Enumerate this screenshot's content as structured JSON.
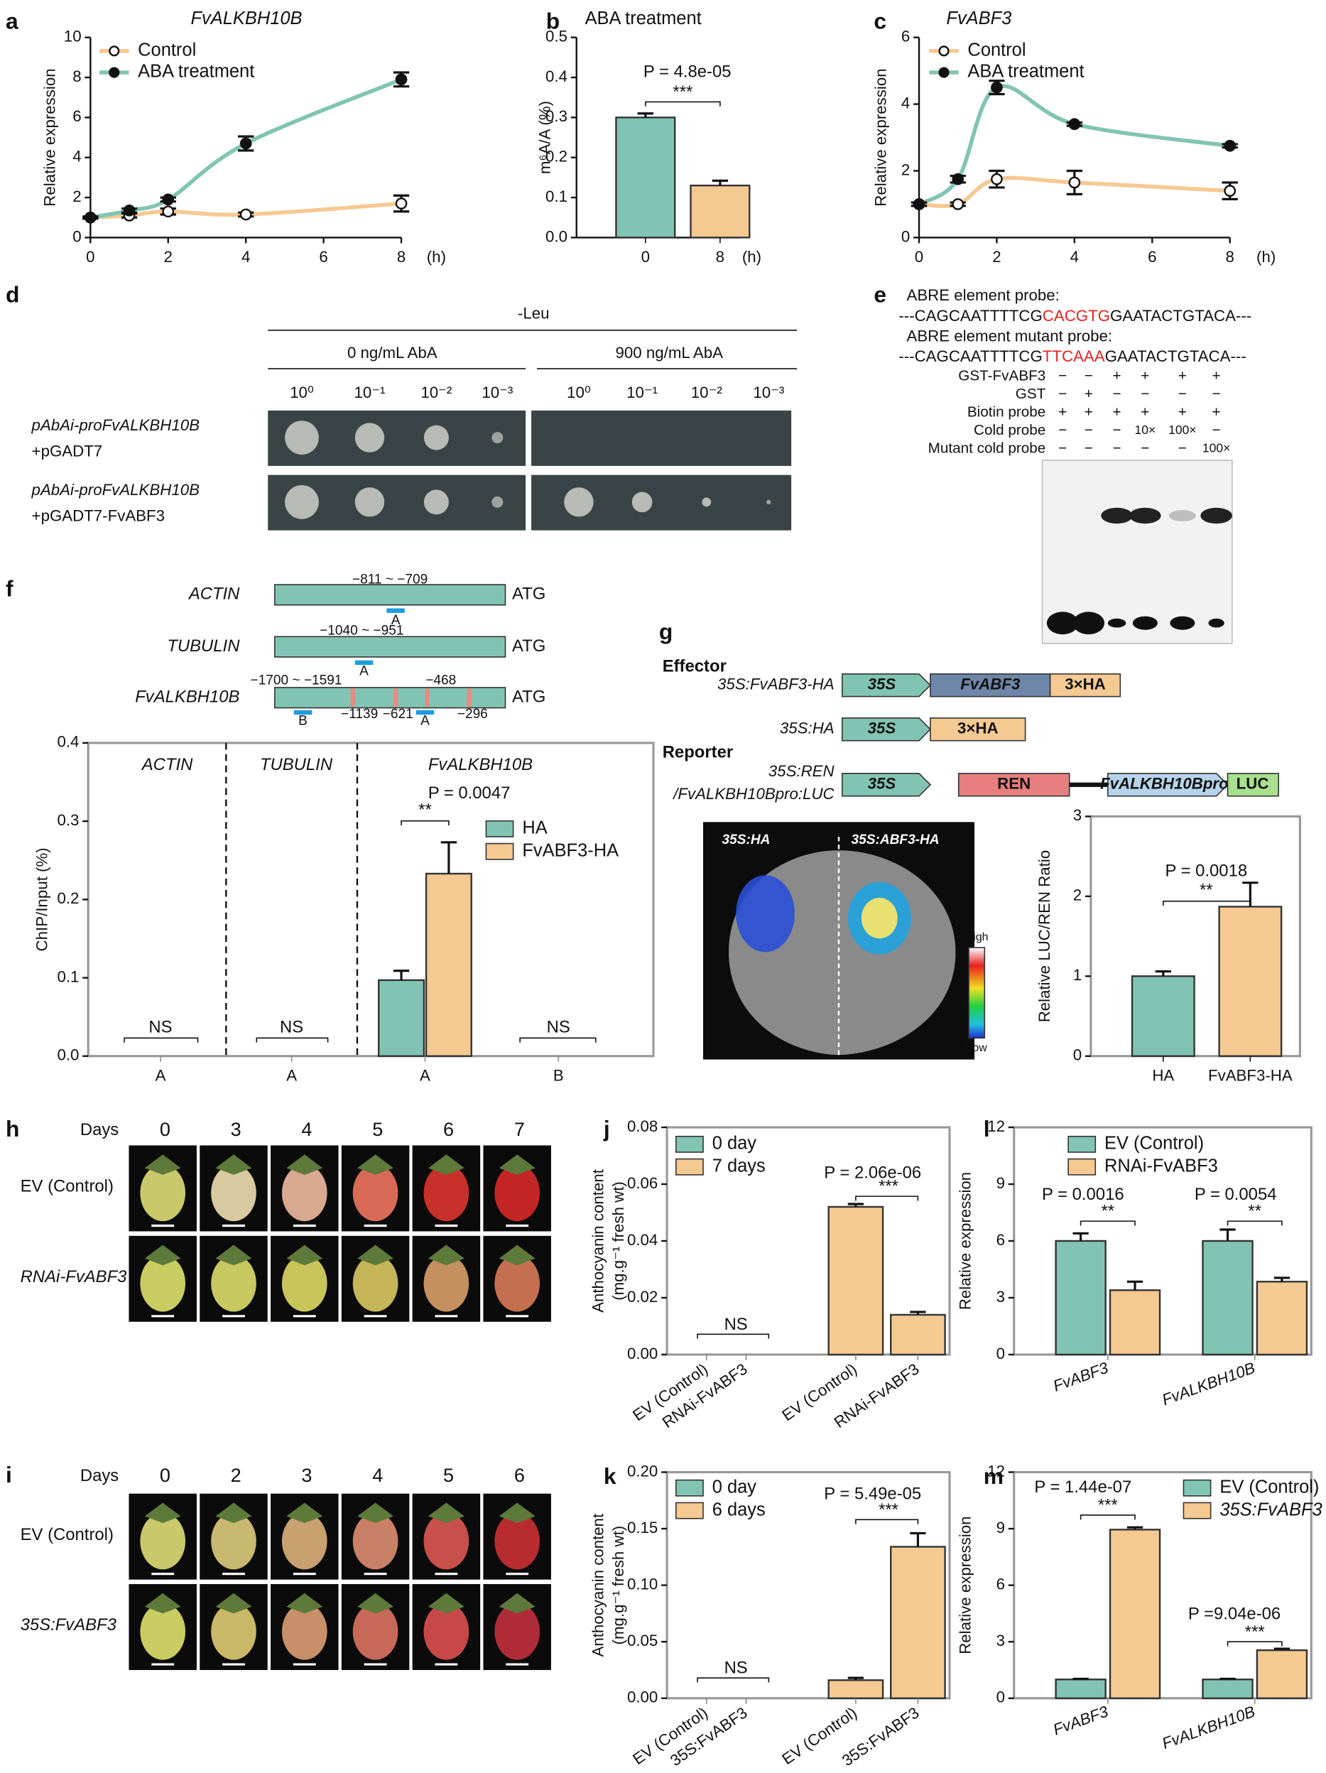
{
  "chart_data": [
    {
      "type": "line",
      "panel": "a",
      "title": "FvALKBH10B",
      "ylabel": "Relative expression",
      "xunit": "(h)",
      "x": [
        0,
        1,
        2,
        4,
        8
      ],
      "xlim": [
        0,
        8
      ],
      "xticks": [
        0,
        2,
        4,
        6,
        8
      ],
      "ylim": [
        0,
        10
      ],
      "yticks": [
        0,
        2,
        4,
        6,
        8,
        10
      ],
      "series": [
        {
          "name": "Control",
          "color": "#f5c992",
          "marker": "open",
          "values": [
            1,
            1.1,
            1.3,
            1.15,
            1.7
          ],
          "errors": [
            0.05,
            0.1,
            0.15,
            0.1,
            0.4
          ]
        },
        {
          "name": "ABA treatment",
          "color": "#82c4b4",
          "marker": "filled",
          "values": [
            1,
            1.35,
            1.9,
            4.7,
            7.9
          ],
          "errors": [
            0.05,
            0.1,
            0.1,
            0.35,
            0.35
          ]
        }
      ]
    },
    {
      "type": "bar",
      "panel": "b",
      "title": "ABA treatment",
      "ylabel": "m⁶A/A (%)",
      "xunit": "(h)",
      "categories": [
        "0",
        "8"
      ],
      "values": [
        0.3,
        0.13
      ],
      "errors": [
        0.01,
        0.012
      ],
      "colors": [
        "#82c4b4",
        "#f5c992"
      ],
      "ylim": [
        0,
        0.5
      ],
      "yticks": [
        {
          "value": 0,
          "label": "0.0"
        },
        0.1,
        0.2,
        0.3,
        0.4,
        0.5
      ],
      "annotations": [
        "P = 4.8e-05",
        "***"
      ]
    },
    {
      "type": "line",
      "panel": "c",
      "title": "FvABF3",
      "ylabel": "Relative expression",
      "xunit": "(h)",
      "x": [
        0,
        1,
        2,
        4,
        8
      ],
      "xlim": [
        0,
        8
      ],
      "xticks": [
        0,
        2,
        4,
        6,
        8
      ],
      "ylim": [
        0,
        6
      ],
      "yticks": [
        0,
        2,
        4,
        6
      ],
      "series": [
        {
          "name": "Control",
          "color": "#f5c992",
          "marker": "open",
          "values": [
            1,
            1,
            1.75,
            1.65,
            1.4
          ],
          "errors": [
            0.05,
            0.05,
            0.25,
            0.35,
            0.25
          ]
        },
        {
          "name": "ABA treatment",
          "color": "#82c4b4",
          "marker": "filled",
          "values": [
            1,
            1.75,
            4.5,
            3.4,
            2.75
          ],
          "errors": [
            0.05,
            0.1,
            0.2,
            0.05,
            0.05
          ]
        }
      ]
    },
    {
      "type": "grouped_bar",
      "panel": "f",
      "ylabel": "ChIP/Input (%)",
      "categories": [
        "A",
        "A",
        "A",
        "B"
      ],
      "group_labels": [
        "ACTIN",
        "TUBULIN",
        "FvALKBH10B"
      ],
      "ylim": [
        0,
        0.4
      ],
      "yticks": [
        {
          "value": 0,
          "label": "0.0"
        },
        0.1,
        0.2,
        0.3,
        0.4
      ],
      "series": [
        {
          "name": "HA",
          "color": "#82c4b4",
          "values": [
            0,
            0,
            0.097,
            0
          ],
          "errors": [
            0,
            0,
            0.012,
            0
          ]
        },
        {
          "name": "FvABF3-HA",
          "color": "#f5c992",
          "values": [
            0,
            0,
            0.233,
            0
          ],
          "errors": [
            0,
            0,
            0.04,
            0
          ]
        }
      ],
      "annotations": [
        "NS",
        "NS",
        "P = 0.0047",
        "**",
        "NS"
      ]
    },
    {
      "type": "bar",
      "panel": "g",
      "ylabel": "Relative LUC/REN Ratio",
      "categories": [
        "HA",
        "FvABF3-HA"
      ],
      "values": [
        1.0,
        1.87
      ],
      "errors": [
        0.06,
        0.3
      ],
      "colors": [
        "#82c4b4",
        "#f5c992"
      ],
      "ylim": [
        0,
        3
      ],
      "yticks": [
        0,
        1,
        2,
        3
      ],
      "annotations": [
        "P = 0.0018",
        "**"
      ]
    },
    {
      "type": "grouped_bar",
      "panel": "j",
      "ylabel": "Anthocyanin content",
      "ylabel2": "(mg.g⁻¹ fresh wt)",
      "categories": [
        "EV (Control)",
        "RNAi-FvABF3",
        "EV (Control)",
        "RNAi-FvABF3"
      ],
      "ylim": [
        0,
        0.08
      ],
      "yticks": [
        {
          "value": 0,
          "label": "0.00"
        },
        {
          "value": 0.02,
          "label": "0.02"
        },
        {
          "value": 0.04,
          "label": "0.04"
        },
        {
          "value": 0.06,
          "label": "0.06"
        },
        {
          "value": 0.08,
          "label": "0.08"
        }
      ],
      "series": [
        {
          "name": "0 day",
          "color": "#82c4b4",
          "values": [
            0,
            0,
            null,
            null
          ],
          "errors": [
            0,
            0,
            null,
            null
          ]
        },
        {
          "name": "7 days",
          "color": "#f5c992",
          "values": [
            null,
            null,
            0.052,
            0.014
          ],
          "errors": [
            null,
            null,
            0.001,
            0.001
          ]
        }
      ],
      "annotations": [
        "NS",
        "P = 2.06e-06",
        "***"
      ]
    },
    {
      "type": "grouped_bar",
      "panel": "l",
      "ylabel": "Relative expression",
      "categories": [
        "FvABF3",
        "FvALKBH10B"
      ],
      "ylim": [
        0,
        12
      ],
      "yticks": [
        0,
        3,
        6,
        9,
        12
      ],
      "series": [
        {
          "name": "EV (Control)",
          "color": "#82c4b4",
          "values": [
            6,
            6
          ],
          "errors": [
            0.4,
            0.6
          ]
        },
        {
          "name": "RNAi-FvABF3",
          "color": "#f5c992",
          "values": [
            3.4,
            3.85
          ],
          "errors": [
            0.45,
            0.2
          ]
        }
      ],
      "annotations": [
        "P = 0.0016",
        "**",
        "P = 0.0054",
        "**"
      ]
    },
    {
      "type": "grouped_bar",
      "panel": "k",
      "ylabel": "Anthocyanin content",
      "ylabel2": "(mg.g⁻¹ fresh wt)",
      "categories": [
        "EV (Control)",
        "35S:FvABF3",
        "EV (Control)",
        "35S:FvABF3"
      ],
      "ylim": [
        0,
        0.2
      ],
      "yticks": [
        {
          "value": 0,
          "label": "0.00"
        },
        {
          "value": 0.05,
          "label": "0.05"
        },
        {
          "value": 0.1,
          "label": "0.10"
        },
        {
          "value": 0.15,
          "label": "0.15"
        },
        {
          "value": 0.2,
          "label": "0.20"
        }
      ],
      "series": [
        {
          "name": "0 day",
          "color": "#82c4b4",
          "values": [
            0,
            0,
            null,
            null
          ],
          "errors": [
            0,
            0,
            null,
            null
          ]
        },
        {
          "name": "6 days",
          "color": "#f5c992",
          "values": [
            null,
            null,
            0.016,
            0.134
          ],
          "errors": [
            null,
            null,
            0.002,
            0.012
          ]
        }
      ],
      "annotations": [
        "NS",
        "P = 5.49e-05",
        "***"
      ]
    },
    {
      "type": "grouped_bar",
      "panel": "m",
      "ylabel": "Relative expression",
      "categories": [
        "FvABF3",
        "FvALKBH10B"
      ],
      "ylim": [
        0,
        12
      ],
      "yticks": [
        0,
        3,
        6,
        9,
        12
      ],
      "series": [
        {
          "name": "EV (Control)",
          "color": "#82c4b4",
          "values": [
            1,
            1
          ],
          "errors": [
            0.03,
            0.03
          ]
        },
        {
          "name": "35S:FvABF3",
          "color": "#f5c992",
          "values": [
            8.95,
            2.55
          ],
          "errors": [
            0.12,
            0.08
          ]
        }
      ],
      "annotations": [
        "P = 1.44e-07",
        "***",
        "P =9.04e-06",
        "***"
      ]
    }
  ],
  "panels": {
    "d": {
      "letter": "d",
      "medium": "-Leu",
      "conditions": [
        "0 ng/mL AbA",
        "900 ng/mL AbA"
      ],
      "dilutions": [
        "10⁰",
        "10⁻¹",
        "10⁻²",
        "10⁻³"
      ],
      "rows": [
        [
          "pAbAi-proFvALKBH10B",
          "+pGADT7"
        ],
        [
          "pAbAi-proFvALKBH10B",
          "+pGADT7-FvABF3"
        ]
      ]
    },
    "e": {
      "letter": "e",
      "probe_title": "ABRE element probe:",
      "probe": [
        "---CAGCAATTTTCG",
        "CACGTG",
        "GAATACTGTACA---"
      ],
      "mutant_title": "ABRE element mutant probe:",
      "mutant": [
        "---CAGCAATTTTCG",
        "TTCAAA",
        "GAATACTGTACA---"
      ],
      "rows": [
        {
          "label": "GST-FvABF3",
          "cells": [
            "−",
            "−",
            "+",
            "+",
            "+",
            "+"
          ]
        },
        {
          "label": "GST",
          "cells": [
            "−",
            "+",
            "−",
            "−",
            "−",
            "−"
          ]
        },
        {
          "label": "Biotin probe",
          "cells": [
            "+",
            "+",
            "+",
            "+",
            "+",
            "+"
          ]
        },
        {
          "label": "Cold probe",
          "cells": [
            "−",
            "−",
            "−",
            "10×",
            "100×",
            "−"
          ]
        },
        {
          "label": "Mutant cold probe",
          "cells": [
            "−",
            "−",
            "−",
            "−",
            "−",
            "100×"
          ]
        }
      ]
    },
    "f": {
      "genes": [
        {
          "name": "ACTIN",
          "range": "−811 ~ −709",
          "site": "A"
        },
        {
          "name": "TUBULIN",
          "range": "−1040 ~ −951",
          "site": "A"
        },
        {
          "name": "FvALKBH10B",
          "range": "−1700 ~ −1591",
          "site": "B",
          "site2": "A",
          "marks": [
            "−468",
            "−1139",
            "−621",
            "−296"
          ]
        }
      ],
      "atg": "ATG"
    },
    "g": {
      "effector": "Effector",
      "reporter": "Reporter",
      "constructs": [
        "35S:FvABF3-HA",
        "35S:HA",
        "35S:REN",
        "/FvALKBH10Bpro:LUC"
      ],
      "parts": {
        "promoter": "35S",
        "gene": "FvABF3",
        "tag": "3×HA",
        "ren": "REN",
        "pro": "FvALKBH10Bpro",
        "luc": "LUC"
      },
      "leaf_labels": [
        "35S:HA",
        "35S:ABF3-HA"
      ],
      "scale": [
        "High",
        "Low"
      ]
    },
    "h": {
      "letter": "h",
      "days_label": "Days",
      "days": [
        "0",
        "3",
        "4",
        "5",
        "6",
        "7"
      ],
      "rows": [
        "EV (Control)",
        "RNAi-FvABF3"
      ]
    },
    "i": {
      "letter": "i",
      "days_label": "Days",
      "days": [
        "0",
        "2",
        "3",
        "4",
        "5",
        "6"
      ],
      "rows": [
        "EV (Control)",
        "35S:FvABF3"
      ]
    }
  }
}
